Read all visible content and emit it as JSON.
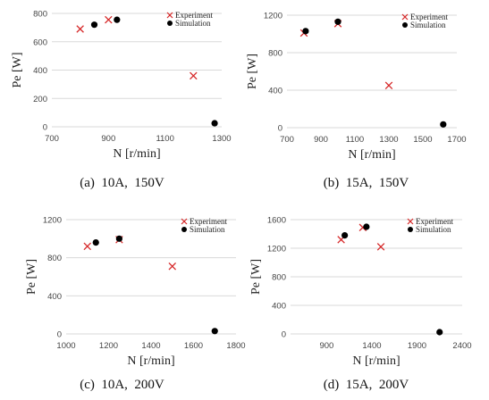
{
  "colors": {
    "experiment": "#d62728",
    "simulation": "#000000",
    "grid": "#d9d9d9"
  },
  "chart_data": [
    {
      "type": "scatter",
      "caption": "(a)  10A,  150V",
      "xlabel": "N [r/min]",
      "ylabel": "Pe [W]",
      "xlim": [
        700,
        1300
      ],
      "ylim": [
        0,
        800
      ],
      "xticks": [
        700,
        900,
        1100,
        1300
      ],
      "yticks": [
        0,
        200,
        400,
        600,
        800
      ],
      "grid": "horizontal",
      "legend": "top-right",
      "series": [
        {
          "name": "Experiment",
          "marker": "x",
          "points": [
            [
              800,
              690
            ],
            [
              900,
              755
            ],
            [
              1200,
              360
            ]
          ]
        },
        {
          "name": "Simulation",
          "marker": "circle",
          "points": [
            [
              850,
              720
            ],
            [
              930,
              755
            ],
            [
              1275,
              25
            ]
          ]
        }
      ]
    },
    {
      "type": "scatter",
      "caption": "(b)  15A,  150V",
      "xlabel": "N [r/min]",
      "ylabel": "Pe [W]",
      "xlim": [
        700,
        1700
      ],
      "ylim": [
        0,
        1200
      ],
      "xticks": [
        700,
        900,
        1100,
        1300,
        1500,
        1700
      ],
      "yticks": [
        0,
        400,
        800,
        1200
      ],
      "grid": "horizontal",
      "legend": "top-right",
      "series": [
        {
          "name": "Experiment",
          "marker": "x",
          "points": [
            [
              800,
              1010
            ],
            [
              1000,
              1110
            ],
            [
              1300,
              450
            ]
          ]
        },
        {
          "name": "Simulation",
          "marker": "circle",
          "points": [
            [
              810,
              1030
            ],
            [
              1000,
              1130
            ],
            [
              1620,
              35
            ]
          ]
        }
      ]
    },
    {
      "type": "scatter",
      "caption": "(c)  10A,  200V",
      "xlabel": "N [r/min]",
      "ylabel": "Pe [W]",
      "xlim": [
        1000,
        1800
      ],
      "ylim": [
        0,
        1200
      ],
      "xticks": [
        1000,
        1200,
        1400,
        1600,
        1800
      ],
      "yticks": [
        0,
        400,
        800,
        1200
      ],
      "grid": "horizontal",
      "legend": "top-right",
      "series": [
        {
          "name": "Experiment",
          "marker": "x",
          "points": [
            [
              1100,
              920
            ],
            [
              1250,
              990
            ],
            [
              1500,
              710
            ]
          ]
        },
        {
          "name": "Simulation",
          "marker": "circle",
          "points": [
            [
              1140,
              960
            ],
            [
              1250,
              1000
            ],
            [
              1700,
              30
            ]
          ]
        }
      ]
    },
    {
      "type": "scatter",
      "caption": "(d)  15A,  200V",
      "xlabel": "N [r/min]",
      "ylabel": "Pe [W]",
      "xlim": [
        500,
        2400
      ],
      "ylim": [
        0,
        1600
      ],
      "xticks": [
        900,
        1400,
        1900,
        2400
      ],
      "yticks": [
        0,
        400,
        800,
        1200,
        1600
      ],
      "grid": "horizontal",
      "legend": "top-right",
      "series": [
        {
          "name": "Experiment",
          "marker": "x",
          "points": [
            [
              1060,
              1320
            ],
            [
              1300,
              1490
            ],
            [
              1500,
              1220
            ]
          ]
        },
        {
          "name": "Simulation",
          "marker": "circle",
          "points": [
            [
              1100,
              1380
            ],
            [
              1340,
              1500
            ],
            [
              2150,
              25
            ]
          ]
        }
      ]
    }
  ]
}
